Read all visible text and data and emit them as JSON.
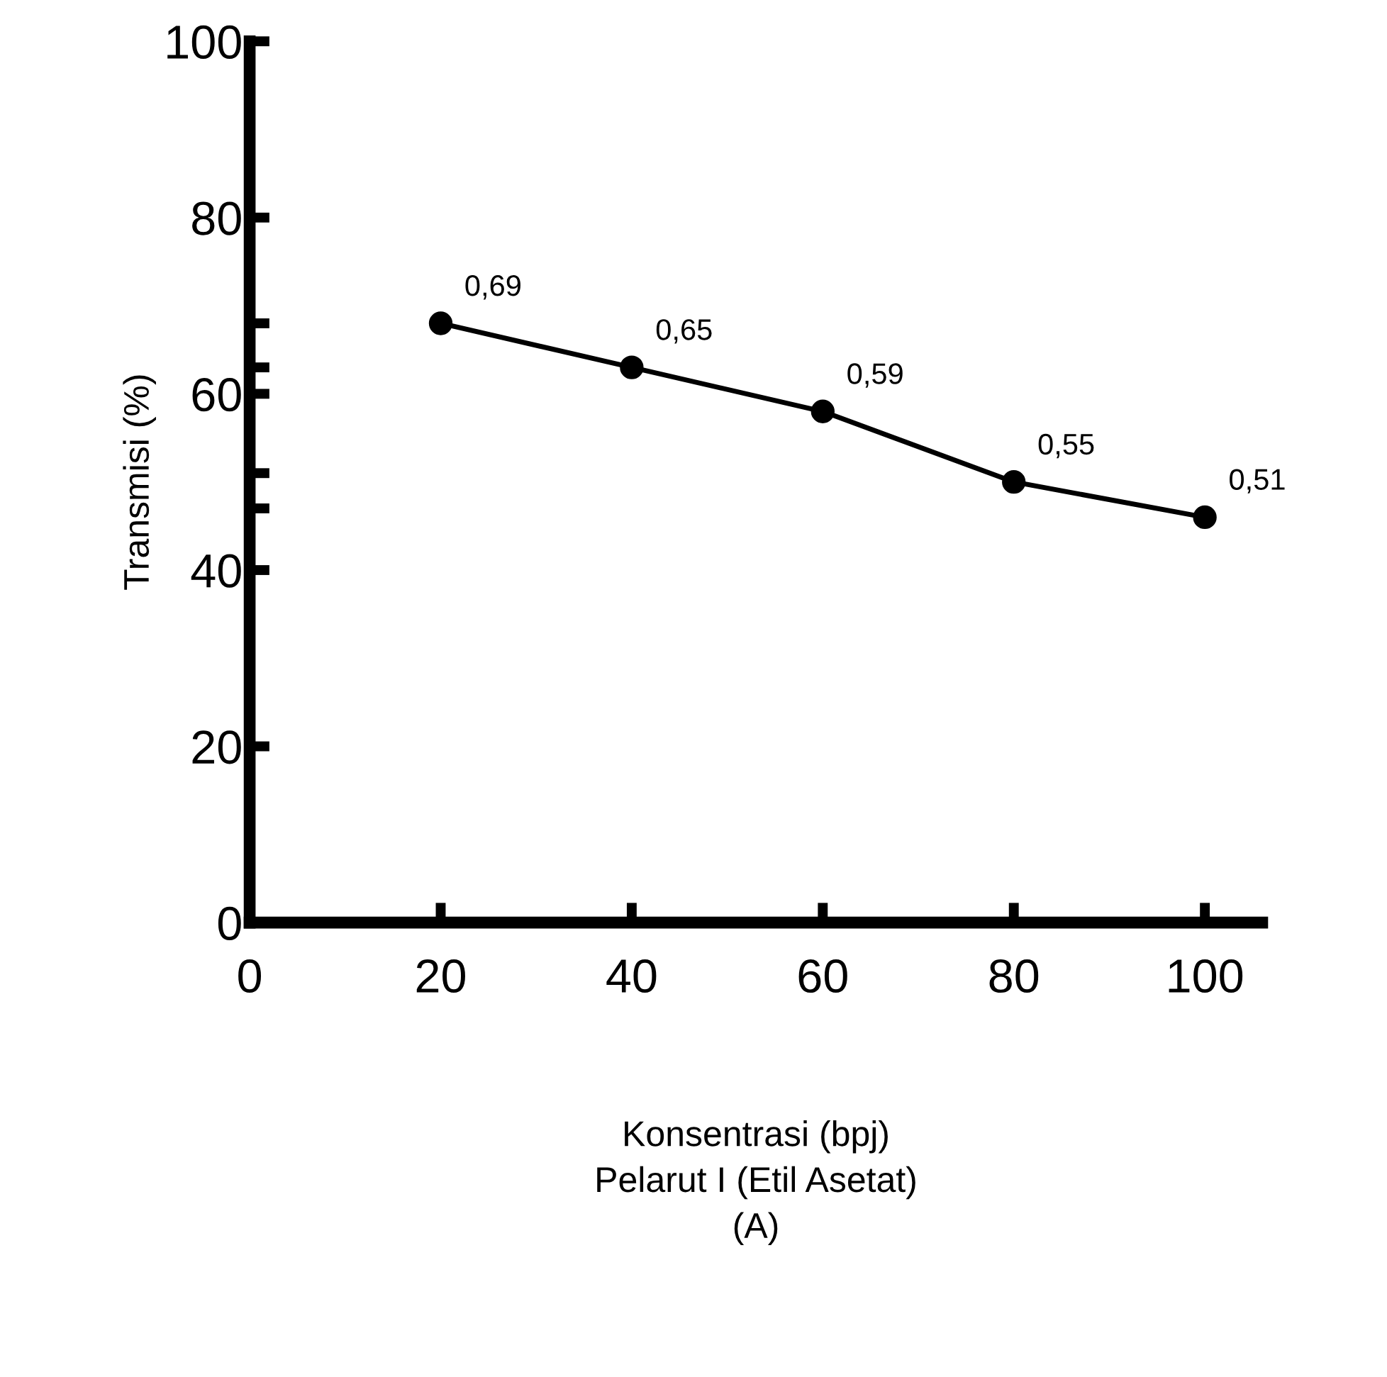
{
  "chart_data": {
    "type": "line",
    "xlabel": "Konsentrasi (bpj)\nPelarut I (Etil Asetat)\n(A)",
    "ylabel": "Transmisi (%)",
    "x": [
      20,
      40,
      60,
      80,
      100
    ],
    "values": [
      68,
      63,
      58,
      50,
      46
    ],
    "annotations": [
      {
        "text": "0,69",
        "x": 20,
        "y": 68
      },
      {
        "text": "0,65",
        "x": 40,
        "y": 63
      },
      {
        "text": "0,59",
        "x": 60,
        "y": 58
      },
      {
        "text": "0,55",
        "x": 80,
        "y": 50
      },
      {
        "text": "0,51",
        "x": 100,
        "y": 46
      }
    ],
    "color": "#000000",
    "marker": "circle",
    "line_style": "solid",
    "xlim": [
      0,
      106
    ],
    "ylim": [
      0,
      100
    ],
    "xticks": [
      0,
      20,
      40,
      60,
      80,
      100
    ],
    "yticks": [
      0,
      20,
      40,
      60,
      80,
      100,
      {
        "value": 68,
        "label": null
      },
      {
        "value": 63,
        "label": null
      },
      {
        "value": 51,
        "label": null
      },
      {
        "value": 47,
        "label": null
      }
    ],
    "grid": false,
    "legend": false
  }
}
